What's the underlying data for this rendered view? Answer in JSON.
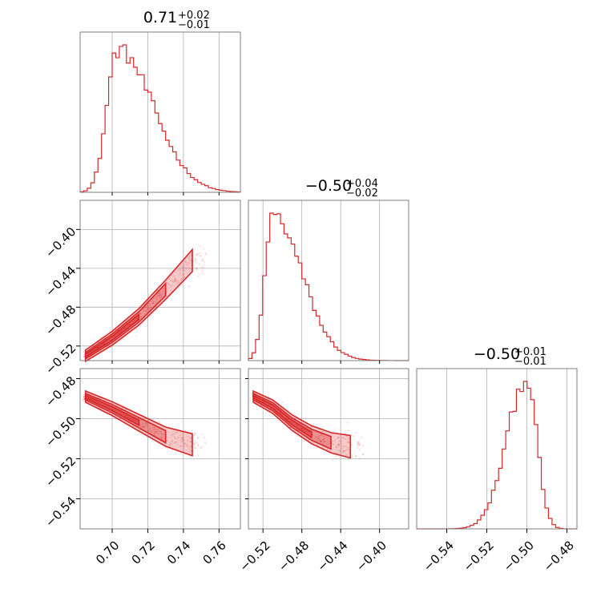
{
  "chart_data": {
    "type": "corner",
    "color": "#d62728",
    "parameters": [
      {
        "title": {
          "value": "0.71",
          "plus": "+0.02",
          "minus": "−0.01"
        },
        "range": [
          0.682,
          0.772
        ],
        "mode": 0.703,
        "sigma_lo": 0.006,
        "sigma_hi": 0.02,
        "ticks": [
          0.7,
          0.72,
          0.74,
          0.76
        ],
        "tick_labels": [
          "0.70",
          "0.72",
          "0.74",
          "0.76"
        ]
      },
      {
        "title": {
          "value": "−0.50",
          "plus": "+0.04",
          "minus": "−0.02"
        },
        "range": [
          -0.535,
          -0.37
        ],
        "mode": -0.51,
        "sigma_lo": 0.008,
        "sigma_hi": 0.03,
        "ticks": [
          -0.52,
          -0.48,
          -0.44,
          -0.4
        ],
        "tick_labels": [
          "−0.52",
          "−0.48",
          "−0.44",
          "−0.40"
        ]
      },
      {
        "title": {
          "value": "−0.50",
          "plus": "+0.01",
          "minus": "−0.01"
        },
        "range": [
          -0.555,
          -0.475
        ],
        "mode": -0.5,
        "sigma_lo": 0.01,
        "sigma_hi": 0.005,
        "ticks": [
          -0.54,
          -0.52,
          -0.5,
          -0.48
        ],
        "tick_labels": [
          "−0.54",
          "−0.52",
          "−0.50",
          "−0.48"
        ]
      }
    ],
    "pairs": [
      {
        "row": 1,
        "col": 0,
        "ridge": [
          [
            0.685,
            -0.53
          ],
          [
            0.7,
            -0.512
          ],
          [
            0.715,
            -0.49
          ],
          [
            0.73,
            -0.462
          ],
          [
            0.745,
            -0.432
          ]
        ]
      },
      {
        "row": 2,
        "col": 0,
        "ridge": [
          [
            0.685,
            -0.489
          ],
          [
            0.7,
            -0.495
          ],
          [
            0.715,
            -0.502
          ],
          [
            0.73,
            -0.509
          ],
          [
            0.745,
            -0.513
          ]
        ]
      },
      {
        "row": 2,
        "col": 1,
        "ridge": [
          [
            -0.53,
            -0.489
          ],
          [
            -0.51,
            -0.494
          ],
          [
            -0.49,
            -0.502
          ],
          [
            -0.47,
            -0.508
          ],
          [
            -0.45,
            -0.512
          ],
          [
            -0.43,
            -0.514
          ]
        ]
      }
    ]
  }
}
